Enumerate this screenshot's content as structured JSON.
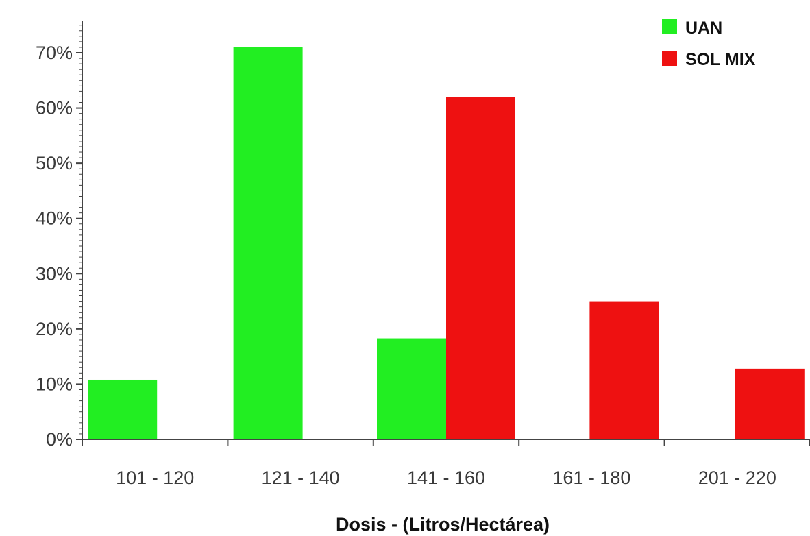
{
  "chart_data": {
    "type": "bar",
    "title": "",
    "xlabel": "Dosis - (Litros/Hectárea)",
    "ylabel": "",
    "categories": [
      "101 - 120",
      "121 - 140",
      "141 - 160",
      "161 - 180",
      "201 - 220"
    ],
    "series": [
      {
        "name": "UAN",
        "color": "#22ee22",
        "values": [
          0.108,
          0.71,
          0.183,
          0,
          0
        ]
      },
      {
        "name": "SOL MIX",
        "color": "#ee1111",
        "values": [
          0,
          0,
          0.62,
          0.25,
          0.128
        ]
      }
    ],
    "ylim": [
      0,
      0.7
    ],
    "yticks": [
      "0%",
      "10%",
      "20%",
      "30%",
      "40%",
      "50%",
      "60%",
      "70%"
    ],
    "legend_position": "top-right",
    "grid": false
  }
}
